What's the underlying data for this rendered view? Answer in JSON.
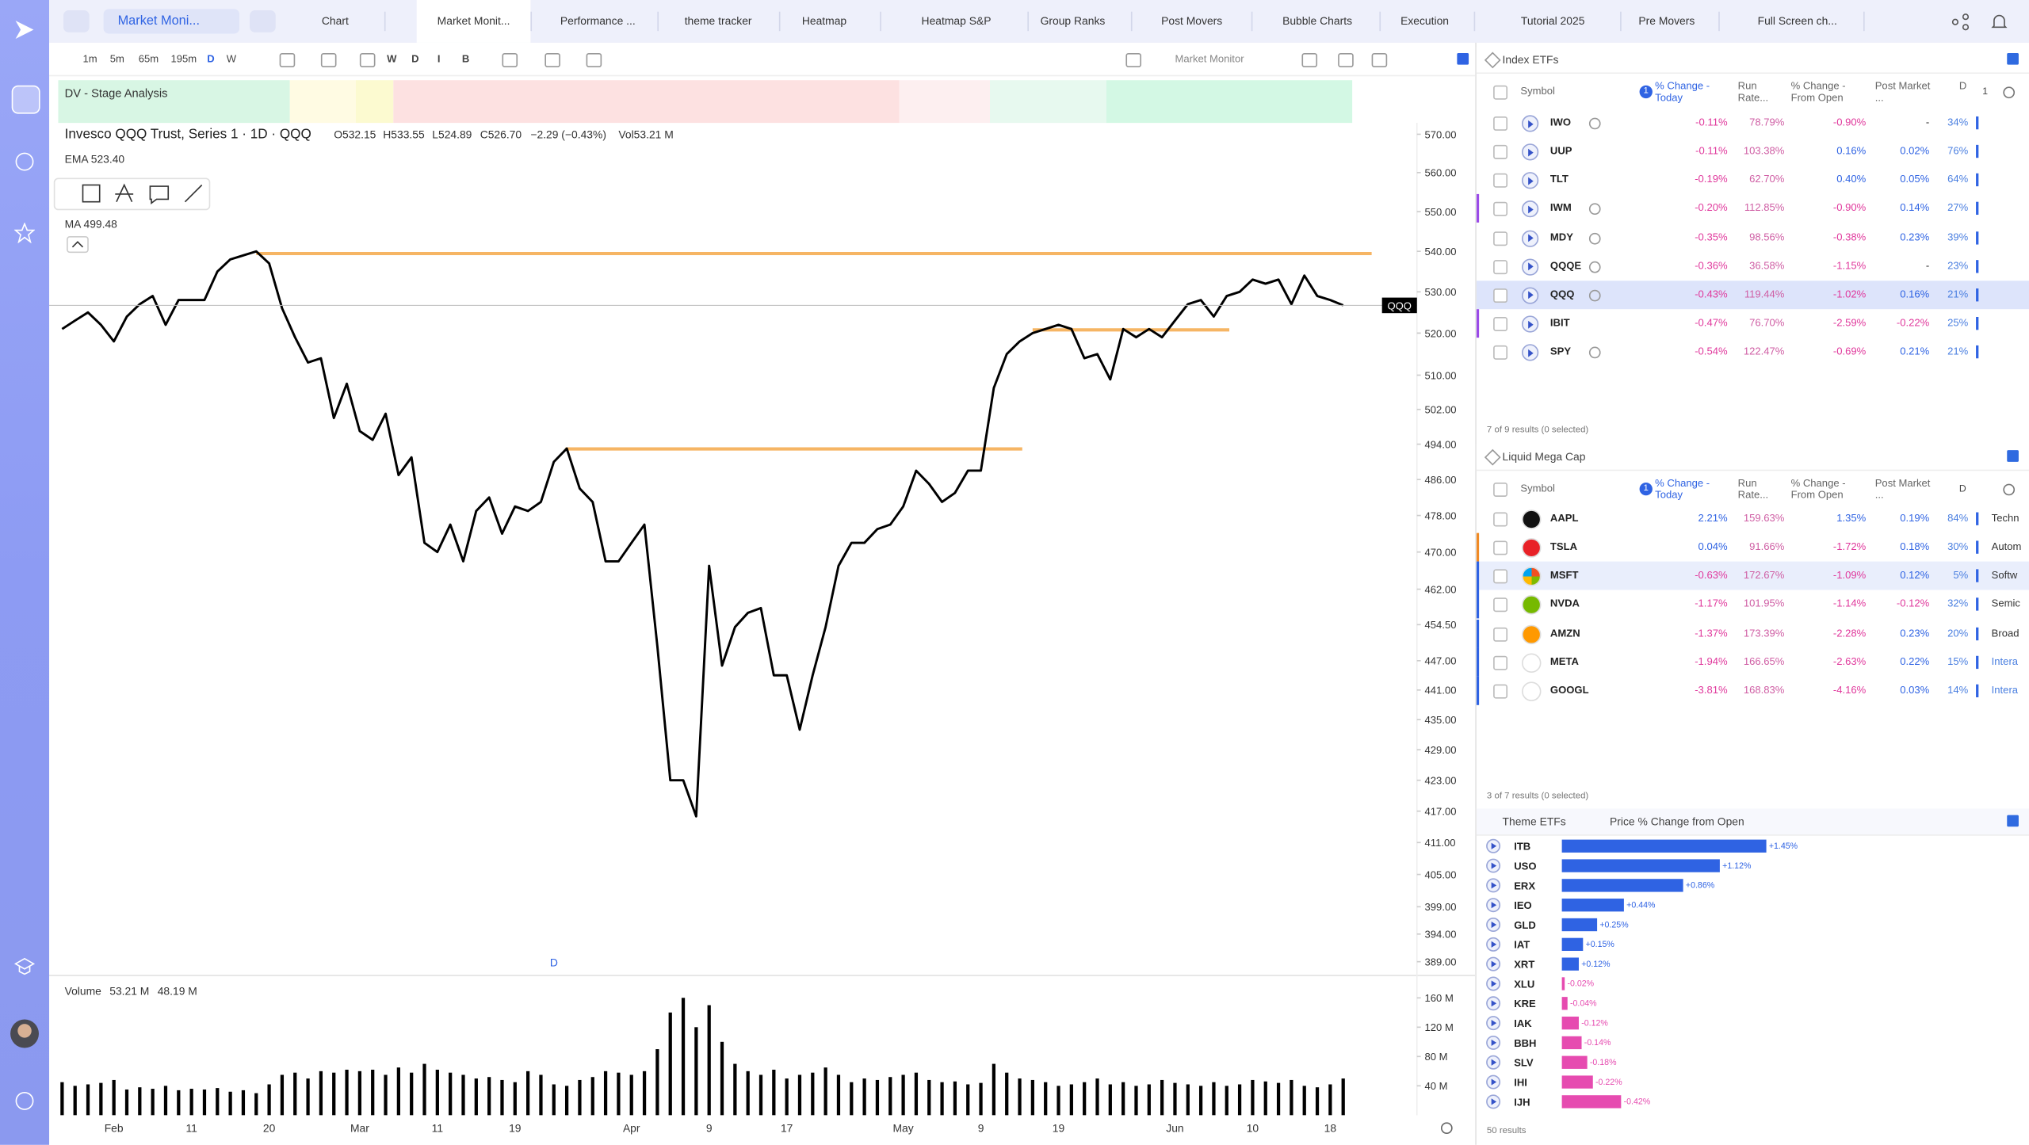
{
  "topbar": {
    "workspace": "Market Moni...",
    "tabs": [
      "Chart",
      "Market Monit...",
      "Performance ...",
      "theme tracker",
      "Heatmap",
      "Heatmap S&P",
      "Group Ranks",
      "Post Movers",
      "Bubble Charts",
      "Execution",
      "Tutorial 2025",
      "Pre Movers",
      "Full Screen ch..."
    ]
  },
  "toolbar": {
    "intervals": [
      "1m",
      "5m",
      "65m",
      "195m",
      "D",
      "W"
    ],
    "styles": [
      "W",
      "D",
      "I",
      "B"
    ],
    "layout": "Market Monitor"
  },
  "stage_label": "DV - Stage Analysis",
  "chart_data": [
    {
      "type": "line",
      "title": "Invesco QQQ Trust, Series 1 · 1D · QQQ",
      "legend_values": [
        "O532.15",
        "H533.55",
        "L524.89",
        "C526.70",
        "−2.29 (−0.43%)",
        "Vol53.21 M"
      ],
      "indicators": [
        "EMA 523.40",
        "MA 499.48"
      ],
      "marker": "D",
      "volume_legend": [
        "53.21 M",
        "48.19 M"
      ],
      "log": true,
      "grid": false,
      "ylim": [
        387,
        573
      ],
      "yticks": [
        {
          "value": 570,
          "label": "570.00"
        },
        {
          "value": 560,
          "label": "560.00"
        },
        {
          "value": 550,
          "label": "550.00"
        },
        {
          "value": 540,
          "label": "540.00"
        },
        {
          "value": 530,
          "label": "530.00"
        },
        {
          "value": 520,
          "label": "520.00"
        },
        {
          "value": 510,
          "label": "510.00"
        },
        {
          "value": 502,
          "label": "502.00"
        },
        {
          "value": 494,
          "label": "494.00"
        },
        {
          "value": 486,
          "label": "486.00"
        },
        {
          "value": 478,
          "label": "478.00"
        },
        {
          "value": 470,
          "label": "470.00"
        },
        {
          "value": 462,
          "label": "462.00"
        },
        {
          "value": 454.5,
          "label": "454.50"
        },
        {
          "value": 447,
          "label": "447.00"
        },
        {
          "value": 441,
          "label": "441.00"
        },
        {
          "value": 435,
          "label": "435.00"
        },
        {
          "value": 429,
          "label": "429.00"
        },
        {
          "value": 423,
          "label": "423.00"
        },
        {
          "value": 417,
          "label": "417.00"
        },
        {
          "value": 411,
          "label": "411.00"
        },
        {
          "value": 405,
          "label": "405.00"
        },
        {
          "value": 399,
          "label": "399.00"
        },
        {
          "value": 394,
          "label": "394.00"
        },
        {
          "value": 389,
          "label": "389.00"
        }
      ],
      "y2lim": [
        0,
        187
      ],
      "y2ticks": [
        {
          "value": 160,
          "label": "160 M"
        },
        {
          "value": 120,
          "label": "120 M"
        },
        {
          "value": 80,
          "label": "80 M"
        },
        {
          "value": 40,
          "label": "40 M"
        }
      ],
      "categories": [
        null,
        null,
        null,
        null,
        "Feb",
        null,
        null,
        null,
        null,
        null,
        "11",
        null,
        null,
        null,
        null,
        null,
        "20",
        null,
        null,
        null,
        null,
        null,
        null,
        "Mar",
        null,
        null,
        null,
        null,
        null,
        "11",
        null,
        null,
        null,
        null,
        null,
        "19",
        null,
        null,
        null,
        null,
        null,
        null,
        null,
        null,
        "Apr",
        null,
        null,
        null,
        null,
        null,
        "9",
        null,
        null,
        null,
        null,
        null,
        "17",
        null,
        null,
        null,
        null,
        null,
        null,
        null,
        null,
        "May",
        null,
        null,
        null,
        null,
        null,
        "9",
        null,
        null,
        null,
        null,
        null,
        "19",
        null,
        null,
        null,
        null,
        null,
        null,
        null,
        null,
        "Jun",
        null,
        null,
        null,
        null,
        null,
        "10",
        null,
        null,
        null,
        null,
        null,
        "18",
        null
      ],
      "series": [
        {
          "name": "QQQ",
          "color": "#000000",
          "values": [
            521,
            523,
            525,
            522,
            518,
            524,
            527,
            529,
            522,
            528,
            528,
            528,
            535,
            538,
            539,
            540,
            537,
            526,
            519,
            513,
            514,
            500,
            508,
            497,
            495,
            501,
            487,
            491,
            472,
            470,
            476,
            468,
            479,
            482,
            474,
            480,
            479,
            481,
            490,
            493,
            484,
            481,
            468,
            468,
            472,
            476,
            450,
            423,
            423,
            416,
            467,
            446,
            454,
            457,
            458,
            444,
            444,
            433,
            444,
            454,
            467,
            472,
            472,
            475,
            476,
            480,
            488,
            485,
            481,
            483,
            488,
            488,
            507,
            515,
            518,
            520,
            521,
            522,
            521,
            514,
            515,
            509,
            521,
            519,
            521,
            519,
            523,
            527,
            528,
            524,
            529,
            530,
            533,
            532,
            533,
            527,
            534,
            529,
            528,
            526.7
          ]
        },
        {
          "name": "Volume",
          "color": "#000000",
          "axis": "y2",
          "values": [
            45,
            40,
            42,
            44,
            48,
            35,
            38,
            36,
            40,
            34,
            36,
            35,
            37,
            32,
            34,
            30,
            42,
            55,
            58,
            50,
            60,
            58,
            62,
            60,
            62,
            55,
            65,
            58,
            70,
            62,
            58,
            55,
            50,
            52,
            48,
            45,
            60,
            55,
            42,
            40,
            48,
            52,
            60,
            58,
            55,
            60,
            90,
            140,
            160,
            120,
            150,
            100,
            70,
            60,
            55,
            62,
            50,
            55,
            58,
            65,
            55,
            45,
            50,
            48,
            52,
            55,
            58,
            48,
            45,
            46,
            42,
            44,
            70,
            58,
            50,
            48,
            45,
            40,
            42,
            45,
            50,
            42,
            45,
            40,
            42,
            48,
            44,
            42,
            40,
            45,
            40,
            42,
            48,
            46,
            44,
            48,
            40,
            38,
            42,
            50
          ]
        }
      ]
    },
    {
      "type": "bar",
      "orientation": "horizontal",
      "title": "Theme ETFs",
      "subtitle": "Price % Change from Open",
      "categories": [
        "ITB",
        "USO",
        "ERX",
        "IEO",
        "GLD",
        "IAT",
        "XRT",
        "XLU",
        "KRE",
        "IAK",
        "BBH",
        "SLV",
        "IHI",
        "IJH"
      ],
      "values": [
        1.45,
        1.12,
        0.86,
        0.44,
        0.25,
        0.15,
        0.12,
        -0.02,
        -0.04,
        -0.12,
        -0.14,
        -0.18,
        -0.22,
        -0.42
      ],
      "value_labels": [
        "+1.45%",
        "+1.12%",
        "+0.86%",
        "+0.44%",
        "+0.25%",
        "+0.15%",
        "+0.12%",
        "-0.02%",
        "-0.04%",
        "-0.12%",
        "-0.14%",
        "-0.18%",
        "-0.22%",
        "-0.42%"
      ],
      "colors": {
        "positive": "#2f63e3",
        "negative": "#e64bb0"
      },
      "footer": "50 results"
    }
  ],
  "index_etfs": {
    "title": "Index ETFs",
    "badges": [
      "1",
      "1"
    ],
    "columns": [
      "Symbol",
      "% Change - Today",
      "Run Rate...",
      "% Change - From Open",
      "Post Market ...",
      "D"
    ],
    "rows": [
      [
        "IWO",
        "-0.11%",
        "78.79%",
        "-0.90%",
        "-",
        "34%"
      ],
      [
        "UUP",
        "-0.11%",
        "103.38%",
        "0.16%",
        "0.02%",
        "76%"
      ],
      [
        "TLT",
        "-0.19%",
        "62.70%",
        "0.40%",
        "0.05%",
        "64%"
      ],
      [
        "IWM",
        "-0.20%",
        "112.85%",
        "-0.90%",
        "0.14%",
        "27%"
      ],
      [
        "MDY",
        "-0.35%",
        "98.56%",
        "-0.38%",
        "0.23%",
        "39%"
      ],
      [
        "QQQE",
        "-0.36%",
        "36.58%",
        "-1.15%",
        "-",
        "23%"
      ],
      [
        "QQQ",
        "-0.43%",
        "119.44%",
        "-1.02%",
        "0.16%",
        "21%"
      ],
      [
        "IBIT",
        "-0.47%",
        "76.70%",
        "-2.59%",
        "-0.22%",
        "25%"
      ],
      [
        "SPY",
        "-0.54%",
        "122.47%",
        "-0.69%",
        "0.21%",
        "21%"
      ]
    ],
    "footer": "7 of 9 results (0 selected)"
  },
  "mega_cap": {
    "title": "Liquid Mega Cap",
    "badges": [
      "1",
      "D"
    ],
    "columns": [
      "Symbol",
      "% Change - Today",
      "Run Rate...",
      "% Change - From Open",
      "Post Market ..."
    ],
    "rows": [
      [
        "AAPL",
        "2.21%",
        "159.63%",
        "1.35%",
        "0.19%",
        "84%",
        "Techn"
      ],
      [
        "TSLA",
        "0.04%",
        "91.66%",
        "-1.72%",
        "0.18%",
        "30%",
        "Autom"
      ],
      [
        "MSFT",
        "-0.63%",
        "172.67%",
        "-1.09%",
        "0.12%",
        "5%",
        "Softw"
      ],
      [
        "NVDA",
        "-1.17%",
        "101.95%",
        "-1.14%",
        "-0.12%",
        "32%",
        "Semic"
      ],
      [
        "AMZN",
        "-1.37%",
        "173.39%",
        "-2.28%",
        "0.23%",
        "20%",
        "Broad"
      ],
      [
        "META",
        "-1.94%",
        "166.65%",
        "-2.63%",
        "0.22%",
        "15%",
        "Intera"
      ],
      [
        "GOOGL",
        "-3.81%",
        "168.83%",
        "-4.16%",
        "0.03%",
        "14%",
        "Intera"
      ]
    ],
    "footer": "3 of 7 results (0 selected)"
  }
}
